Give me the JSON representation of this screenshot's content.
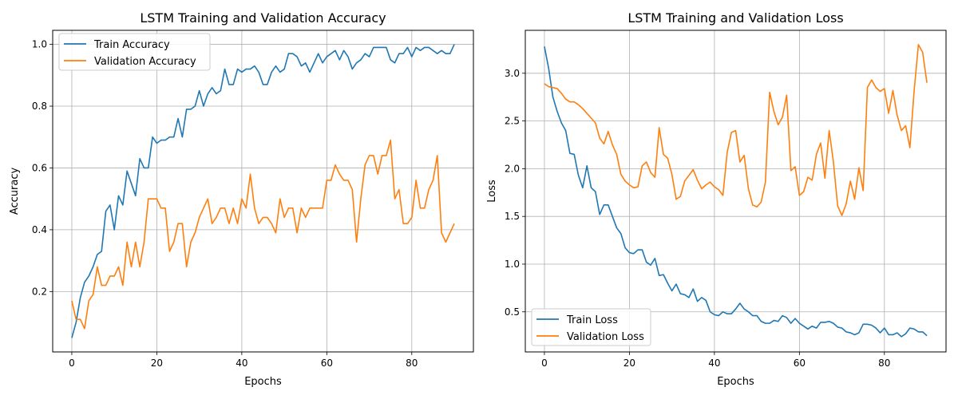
{
  "colors": {
    "train": "#1f77b4",
    "validation": "#ff7f0e",
    "grid": "#b0b0b0"
  },
  "chart_data": [
    {
      "type": "line",
      "title": "LSTM Training and Validation Accuracy",
      "xlabel": "Epochs",
      "ylabel": "Accuracy",
      "xlim": [
        -4.5,
        94.5
      ],
      "ylim": [
        0.0046,
        1.0454
      ],
      "xticks": [
        0,
        20,
        40,
        60,
        80
      ],
      "yticks": [
        0.2,
        0.4,
        0.6,
        0.8,
        1.0
      ],
      "ytick_labels": [
        "0.2",
        "0.4",
        "0.6",
        "0.8",
        "1.0"
      ],
      "grid": true,
      "legend": "upper left",
      "series": [
        {
          "name": "Train Accuracy",
          "color": "#1f77b4",
          "values": [
            0.05,
            0.1,
            0.18,
            0.23,
            0.25,
            0.28,
            0.32,
            0.33,
            0.46,
            0.48,
            0.4,
            0.51,
            0.48,
            0.59,
            0.55,
            0.51,
            0.63,
            0.6,
            0.6,
            0.7,
            0.68,
            0.69,
            0.69,
            0.7,
            0.7,
            0.76,
            0.7,
            0.79,
            0.79,
            0.8,
            0.85,
            0.8,
            0.84,
            0.86,
            0.84,
            0.85,
            0.92,
            0.87,
            0.87,
            0.92,
            0.91,
            0.92,
            0.92,
            0.93,
            0.91,
            0.87,
            0.87,
            0.91,
            0.93,
            0.91,
            0.92,
            0.97,
            0.97,
            0.96,
            0.93,
            0.94,
            0.91,
            0.94,
            0.97,
            0.94,
            0.96,
            0.97,
            0.98,
            0.95,
            0.98,
            0.96,
            0.92,
            0.94,
            0.95,
            0.97,
            0.96,
            0.99,
            0.99,
            0.99,
            0.99,
            0.95,
            0.94,
            0.97,
            0.97,
            0.99,
            0.96,
            0.99,
            0.98,
            0.99,
            0.99,
            0.98,
            0.97,
            0.98,
            0.97,
            0.97,
            1.0
          ]
        },
        {
          "name": "Validation Accuracy",
          "color": "#ff7f0e",
          "values": [
            0.17,
            0.11,
            0.11,
            0.08,
            0.17,
            0.19,
            0.28,
            0.22,
            0.22,
            0.25,
            0.25,
            0.28,
            0.22,
            0.36,
            0.28,
            0.36,
            0.28,
            0.36,
            0.5,
            0.5,
            0.5,
            0.47,
            0.47,
            0.33,
            0.36,
            0.42,
            0.42,
            0.28,
            0.36,
            0.39,
            0.44,
            0.47,
            0.5,
            0.42,
            0.44,
            0.47,
            0.47,
            0.42,
            0.47,
            0.42,
            0.5,
            0.47,
            0.58,
            0.47,
            0.42,
            0.44,
            0.44,
            0.42,
            0.39,
            0.5,
            0.44,
            0.47,
            0.47,
            0.39,
            0.47,
            0.44,
            0.47,
            0.47,
            0.47,
            0.47,
            0.56,
            0.56,
            0.61,
            0.58,
            0.56,
            0.56,
            0.53,
            0.36,
            0.5,
            0.61,
            0.64,
            0.64,
            0.58,
            0.64,
            0.64,
            0.69,
            0.5,
            0.53,
            0.42,
            0.42,
            0.44,
            0.56,
            0.47,
            0.47,
            0.53,
            0.56,
            0.64,
            0.39,
            0.36,
            0.39,
            0.42
          ]
        }
      ]
    },
    {
      "type": "line",
      "title": "LSTM Training and Validation Loss",
      "xlabel": "Epochs",
      "ylabel": "Loss",
      "xlim": [
        -4.5,
        94.5
      ],
      "ylim": [
        0.08,
        3.45
      ],
      "xticks": [
        0,
        20,
        40,
        60,
        80
      ],
      "yticks": [
        0.5,
        1.0,
        1.5,
        2.0,
        2.5,
        3.0
      ],
      "ytick_labels": [
        "0.5",
        "1.0",
        "1.5",
        "2.0",
        "2.5",
        "3.0"
      ],
      "grid": true,
      "legend": "lower left",
      "series": [
        {
          "name": "Train Loss",
          "color": "#1f77b4",
          "values": [
            3.28,
            3.05,
            2.75,
            2.6,
            2.48,
            2.4,
            2.16,
            2.15,
            1.93,
            1.8,
            2.03,
            1.8,
            1.76,
            1.52,
            1.62,
            1.62,
            1.5,
            1.38,
            1.32,
            1.17,
            1.12,
            1.11,
            1.15,
            1.15,
            1.02,
            0.99,
            1.06,
            0.88,
            0.89,
            0.8,
            0.72,
            0.79,
            0.69,
            0.68,
            0.65,
            0.74,
            0.61,
            0.65,
            0.62,
            0.5,
            0.47,
            0.46,
            0.5,
            0.48,
            0.48,
            0.53,
            0.59,
            0.53,
            0.5,
            0.46,
            0.46,
            0.4,
            0.38,
            0.38,
            0.41,
            0.4,
            0.46,
            0.44,
            0.38,
            0.43,
            0.38,
            0.35,
            0.32,
            0.35,
            0.33,
            0.39,
            0.39,
            0.4,
            0.38,
            0.34,
            0.33,
            0.29,
            0.28,
            0.26,
            0.28,
            0.37,
            0.37,
            0.36,
            0.33,
            0.28,
            0.33,
            0.26,
            0.26,
            0.28,
            0.24,
            0.27,
            0.33,
            0.32,
            0.29,
            0.29,
            0.25
          ]
        },
        {
          "name": "Validation Loss",
          "color": "#ff7f0e",
          "values": [
            2.89,
            2.86,
            2.85,
            2.84,
            2.79,
            2.73,
            2.7,
            2.7,
            2.67,
            2.63,
            2.58,
            2.53,
            2.48,
            2.32,
            2.26,
            2.39,
            2.25,
            2.15,
            1.94,
            1.87,
            1.83,
            1.8,
            1.81,
            2.03,
            2.07,
            1.96,
            1.91,
            2.43,
            2.15,
            2.11,
            1.94,
            1.68,
            1.71,
            1.87,
            1.93,
            1.99,
            1.88,
            1.79,
            1.83,
            1.86,
            1.81,
            1.78,
            1.72,
            2.17,
            2.38,
            2.4,
            2.07,
            2.14,
            1.79,
            1.62,
            1.6,
            1.65,
            1.86,
            2.8,
            2.6,
            2.46,
            2.54,
            2.77,
            1.98,
            2.02,
            1.72,
            1.76,
            1.91,
            1.88,
            2.15,
            2.27,
            1.9,
            2.4,
            2.07,
            1.61,
            1.51,
            1.63,
            1.87,
            1.68,
            2.01,
            1.77,
            2.85,
            2.93,
            2.85,
            2.81,
            2.84,
            2.58,
            2.82,
            2.56,
            2.4,
            2.45,
            2.22,
            2.82,
            3.3,
            3.22,
            2.9
          ]
        }
      ]
    }
  ]
}
